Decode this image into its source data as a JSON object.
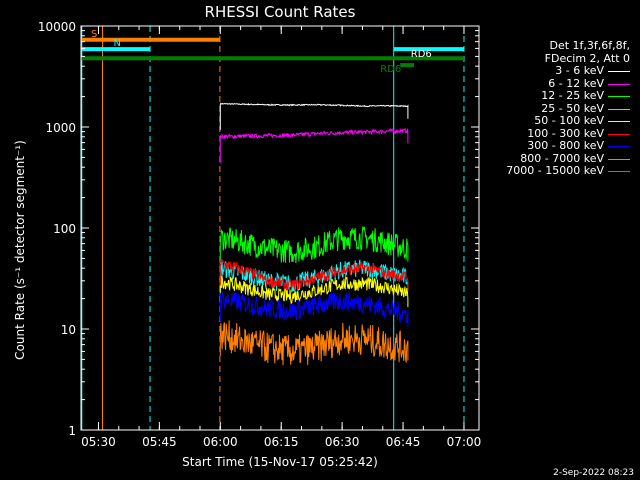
{
  "chart_data": {
    "type": "line",
    "title": "RHESSI Count Rates",
    "xlabel": "Start Time (15-Nov-17 05:25:42)",
    "ylabel": "Count Rate (s⁻¹ detector segment⁻¹)",
    "yscale": "log",
    "ylim": [
      1,
      10000
    ],
    "y_ticks": [
      1,
      10,
      100,
      1000,
      10000
    ],
    "y_tick_labels": [
      "1",
      "10",
      "100",
      "1000",
      "10000"
    ],
    "xlim_minutes": [
      0,
      98
    ],
    "x_ticks": [
      4.3,
      19.3,
      34.3,
      49.3,
      64.3,
      79.3,
      94.3
    ],
    "x_tick_labels": [
      "05:30",
      "05:45",
      "06:00",
      "06:15",
      "06:30",
      "06:45",
      "07:00"
    ],
    "legend_header": [
      "Det 1f,3f,6f,8f,",
      "FDecim 2, Att 0"
    ],
    "series": [
      {
        "name": "3 - 6 keV",
        "color": "#ffffff",
        "x": [
          34.3,
          40,
          46,
          52,
          58,
          64,
          70,
          75,
          80.5
        ],
        "values": [
          1700,
          1680,
          1660,
          1650,
          1660,
          1640,
          1610,
          1620,
          1610
        ]
      },
      {
        "name": "6 - 12 keV",
        "color": "#ff00ff",
        "x": [
          34.3,
          40,
          46,
          52,
          58,
          64,
          70,
          75,
          80.5
        ],
        "values": [
          800,
          810,
          820,
          830,
          860,
          880,
          890,
          910,
          920
        ]
      },
      {
        "name": "12 - 25 keV",
        "color": "#00ff00",
        "x": [
          34.3,
          40,
          46,
          52,
          58,
          64,
          70,
          75,
          80.5
        ],
        "values": [
          80,
          72,
          62,
          58,
          65,
          80,
          80,
          72,
          62
        ]
      },
      {
        "name": "25 - 50 keV",
        "color": "#00ffff",
        "x": [
          34.3,
          40,
          46,
          52,
          58,
          64,
          70,
          75,
          80.5
        ],
        "values": [
          40,
          35,
          30,
          28,
          32,
          38,
          40,
          36,
          32
        ]
      },
      {
        "name": "50 - 100 keV",
        "color": "#ffff00",
        "x": [
          34.3,
          40,
          46,
          52,
          58,
          64,
          70,
          75,
          80.5
        ],
        "values": [
          30,
          26,
          22,
          21,
          24,
          28,
          28,
          26,
          22
        ]
      },
      {
        "name": "100 - 300 keV",
        "color": "#ff0000",
        "x": [
          34.3,
          40,
          46,
          52,
          58,
          64,
          70,
          75,
          80.5
        ],
        "values": [
          45,
          38,
          30,
          27,
          32,
          38,
          40,
          36,
          32
        ]
      },
      {
        "name": "300 - 800 keV",
        "color": "#0000ff",
        "x": [
          34.3,
          40,
          46,
          52,
          58,
          64,
          70,
          75,
          80.5
        ],
        "values": [
          20,
          18,
          16,
          15,
          17,
          19,
          18,
          16,
          14
        ]
      },
      {
        "name": "800 - 7000 keV",
        "color": "#ff8000",
        "x": [
          34.3,
          40,
          46,
          52,
          58,
          64,
          70,
          75,
          80.5
        ],
        "values": [
          9,
          7.5,
          6.5,
          6,
          6.5,
          8,
          8,
          7,
          6.5
        ]
      },
      {
        "name": "7000 - 15000 keV",
        "color": "#b86e00",
        "x": [],
        "values": []
      }
    ],
    "attenuator_bars": [
      {
        "label": "S",
        "color": "#ff8000",
        "x_start": 0,
        "x_end": 34.2,
        "y": 7300
      },
      {
        "label": "N",
        "color": "#00ffff",
        "x_start": 0,
        "x_end": 17,
        "y": 5900
      },
      {
        "label": "",
        "color": "#00ffff",
        "x_start": 77,
        "x_end": 94.3,
        "y": 5900
      },
      {
        "label": "",
        "color": "#008000",
        "x_start": 0,
        "x_end": 94.3,
        "y": 4800
      },
      {
        "label": "RD6",
        "color": "#008000",
        "x_start": 78.6,
        "x_end": 82,
        "y": 4100
      }
    ],
    "flag_labels": [
      {
        "label": "RD6",
        "color": "#ffffff",
        "x": 81.2,
        "y": 4950
      }
    ],
    "vertical_lines": [
      {
        "x": 0.2,
        "color": "#00ffff",
        "style": "solid"
      },
      {
        "x": 5.3,
        "color": "#ff8000",
        "style": "solid"
      },
      {
        "x": 17,
        "color": "#00ffff",
        "style": "dashed"
      },
      {
        "x": 34.2,
        "color": "#ff8000",
        "style": "dashed"
      },
      {
        "x": 77,
        "color": "#00ffff",
        "style": "solid"
      },
      {
        "x": 94.3,
        "color": "#00ffff",
        "style": "dashed"
      }
    ]
  },
  "footer": {
    "timestamp": "2-Sep-2022 08:23"
  }
}
